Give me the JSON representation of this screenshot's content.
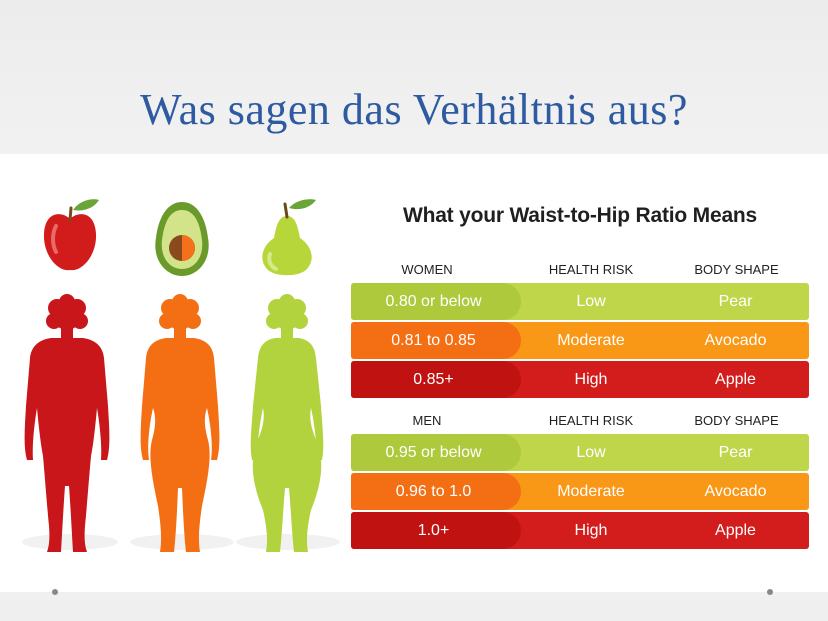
{
  "slide": {
    "title": "Was sagen das Verhältnis aus?"
  },
  "infographic": {
    "title": "What your Waist-to-Hip Ratio Means",
    "colors": {
      "pear": "#afc93c",
      "avocado": "#f46f14",
      "apple": "#c11212"
    },
    "fruits": [
      "apple-icon",
      "avocado-icon",
      "pear-icon"
    ],
    "women": {
      "headers": {
        "group": "WOMEN",
        "risk": "HEALTH RISK",
        "shape": "BODY SHAPE"
      },
      "rows": [
        {
          "ratio": "0.80 or below",
          "risk": "Low",
          "shape": "Pear"
        },
        {
          "ratio": "0.81 to 0.85",
          "risk": "Moderate",
          "shape": "Avocado"
        },
        {
          "ratio": "0.85+",
          "risk": "High",
          "shape": "Apple"
        }
      ]
    },
    "men": {
      "headers": {
        "group": "MEN",
        "risk": "HEALTH RISK",
        "shape": "BODY SHAPE"
      },
      "rows": [
        {
          "ratio": "0.95 or below",
          "risk": "Low",
          "shape": "Pear"
        },
        {
          "ratio": "0.96 to 1.0",
          "risk": "Moderate",
          "shape": "Avocado"
        },
        {
          "ratio": "1.0+",
          "risk": "High",
          "shape": "Apple"
        }
      ]
    }
  }
}
